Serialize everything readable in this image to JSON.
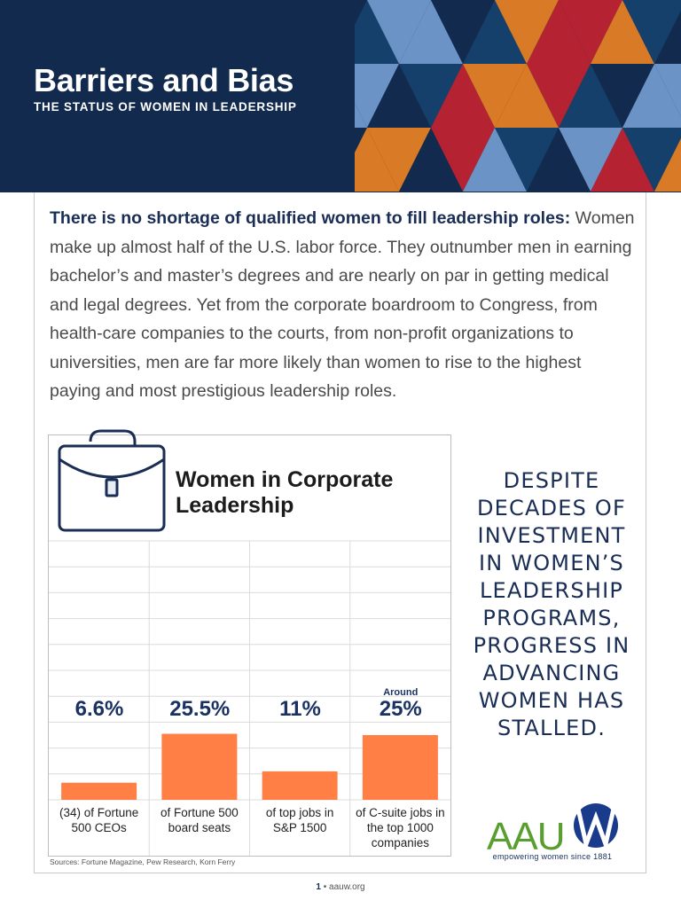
{
  "header": {
    "title": "Barriers and Bias",
    "subtitle": "THE STATUS OF WOMEN IN LEADERSHIP",
    "colors": {
      "navy": "#122a4e",
      "orange": "#d97a26",
      "red": "#b52232",
      "blue": "#6b93c6",
      "dark_blue": "#16406c"
    }
  },
  "intro": {
    "lead": "There is no shortage of qualified women to fill leadership roles:",
    "body": " Women make up almost half of the U.S. labor force. They outnumber men in earning bachelor’s and master’s degrees and are nearly on par in getting medical and legal degrees. Yet from the corporate boardroom to Congress, from health-care companies to the courts, from non-profit organizations to universities, men are far more likely than women to rise to the highest paying and most prestigious leadership roles."
  },
  "chart": {
    "title": "Women in Corporate Leadership",
    "icon": "briefcase-icon",
    "sources": "Sources:  Fortune Magazine, Pew Research, Korn Ferry"
  },
  "chart_data": {
    "type": "bar",
    "title": "Women in Corporate Leadership",
    "categories": [
      "(34) of Fortune 500 CEOs",
      "of Fortune 500 board seats",
      "of top jobs in S&P 1500",
      "of C-suite jobs in the top 1000 companies"
    ],
    "values": [
      6.6,
      25.5,
      11,
      25
    ],
    "value_labels": [
      "6.6%",
      "25.5%",
      "11%",
      "25%"
    ],
    "value_prefix": [
      "",
      "",
      "",
      "Around"
    ],
    "ylim": [
      0,
      100
    ],
    "grid": true,
    "bar_color": "#ff7f45"
  },
  "callout": {
    "text": "DESPITE DECADES OF INVESTMENT IN WOMEN’S LEADERSHIP PROGRAMS, PROGRESS IN ADVANCING WOMEN HAS STALLED."
  },
  "logo": {
    "text": "AAUW",
    "tagline": "empowering women since 1881",
    "green": "#5a9e2f",
    "blue": "#1a3a8c"
  },
  "footer": {
    "page": "1",
    "separator": "•",
    "site": "aauw.org"
  }
}
